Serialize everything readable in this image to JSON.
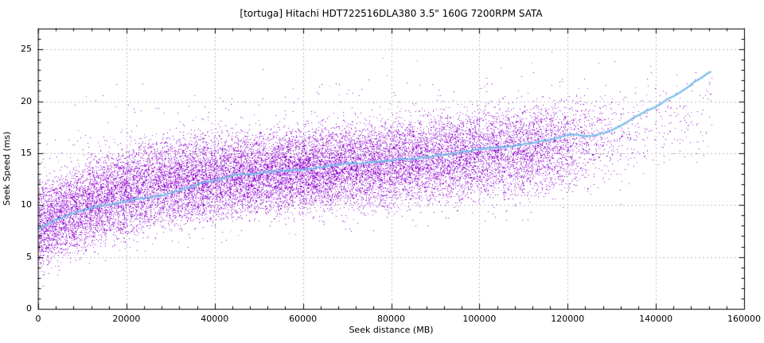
{
  "chart_data": {
    "type": "scatter",
    "title": "[tortuga] Hitachi HDT722516DLA380 3.5\" 160G 7200RPM SATA",
    "xlabel": "Seek distance (MB)",
    "ylabel": "Seek Speed (ms)",
    "xlim": [
      0,
      160000
    ],
    "ylim": [
      0,
      27
    ],
    "xticks": [
      0,
      20000,
      40000,
      60000,
      80000,
      100000,
      120000,
      140000,
      160000
    ],
    "xtick_labels": [
      "0",
      "20000",
      "40000",
      "60000",
      "80000",
      "100000",
      "120000",
      "140000",
      "160000"
    ],
    "yticks": [
      0,
      5,
      10,
      15,
      20,
      25
    ],
    "ytick_labels": [
      "0",
      "5",
      "10",
      "15",
      "20",
      "25"
    ],
    "x_minor_step": 4000,
    "y_minor_step": 1,
    "grid": {
      "show": true,
      "color": "#bcbcbc",
      "dash": [
        2,
        3
      ]
    },
    "colors": {
      "point": "#9400d3",
      "point_alt1": "#a336de",
      "point_alt2": "#8a00c4",
      "point_alt3": "#b45ae6",
      "trend_core": "#72b8e8",
      "trend_halo": "rgba(140,200,240,0.42)",
      "axis": "#000000"
    },
    "series": [
      {
        "name": "seek-samples",
        "kind": "points"
      },
      {
        "name": "running-average",
        "kind": "line"
      }
    ],
    "trend": {
      "points": [
        [
          0,
          7.7
        ],
        [
          4000,
          8.6
        ],
        [
          8500,
          9.3
        ],
        [
          13000,
          9.8
        ],
        [
          17000,
          10.1
        ],
        [
          21000,
          10.5
        ],
        [
          25000,
          10.75
        ],
        [
          29000,
          11.0
        ],
        [
          33000,
          11.5
        ],
        [
          37000,
          12.1
        ],
        [
          41000,
          12.5
        ],
        [
          45000,
          12.9
        ],
        [
          49000,
          13.0
        ],
        [
          54000,
          13.2
        ],
        [
          60000,
          13.4
        ],
        [
          66000,
          13.8
        ],
        [
          72000,
          14.0
        ],
        [
          78000,
          14.2
        ],
        [
          84000,
          14.4
        ],
        [
          90000,
          14.75
        ],
        [
          96000,
          15.1
        ],
        [
          102000,
          15.45
        ],
        [
          108000,
          15.75
        ],
        [
          113000,
          16.05
        ],
        [
          117500,
          16.4
        ],
        [
          120500,
          16.85
        ],
        [
          124000,
          16.6
        ],
        [
          127000,
          16.8
        ],
        [
          130000,
          17.25
        ],
        [
          133000,
          17.9
        ],
        [
          137500,
          19.0
        ],
        [
          140000,
          19.4
        ],
        [
          143000,
          20.2
        ],
        [
          146000,
          21.0
        ],
        [
          149000,
          21.9
        ],
        [
          152700,
          22.9
        ]
      ]
    },
    "scatter": {
      "count": 21000,
      "seed": 42,
      "x_max": 152700,
      "band_x": [
        0,
        5000,
        10000,
        15000,
        20000,
        25000,
        30000,
        40000,
        50000,
        60000,
        70000,
        80000,
        90000,
        100000,
        110000,
        120000,
        130000,
        140000,
        152700
      ],
      "band_low": [
        3.4,
        4.3,
        5.1,
        5.9,
        6.5,
        7.1,
        7.6,
        8.1,
        8.6,
        8.9,
        9.1,
        9.4,
        9.7,
        10.0,
        10.3,
        10.8,
        11.6,
        12.8,
        14.8
      ],
      "band_high": [
        12.6,
        13.6,
        14.6,
        15.4,
        16.1,
        16.6,
        17.0,
        17.3,
        17.5,
        17.8,
        18.2,
        18.7,
        19.2,
        19.7,
        20.2,
        20.8,
        21.4,
        22.2,
        23.6
      ],
      "density_x": [
        0,
        60000,
        80000,
        100000,
        115000,
        125000,
        133000,
        140000,
        152700
      ],
      "density_w": [
        1,
        1,
        0.92,
        0.75,
        0.62,
        0.2,
        0.1,
        0.06,
        0.04
      ],
      "outlier_hi_rate": 0.012,
      "outlier_hi2_rate": 0.0015,
      "outlier_lo_rate": 0.006
    }
  }
}
